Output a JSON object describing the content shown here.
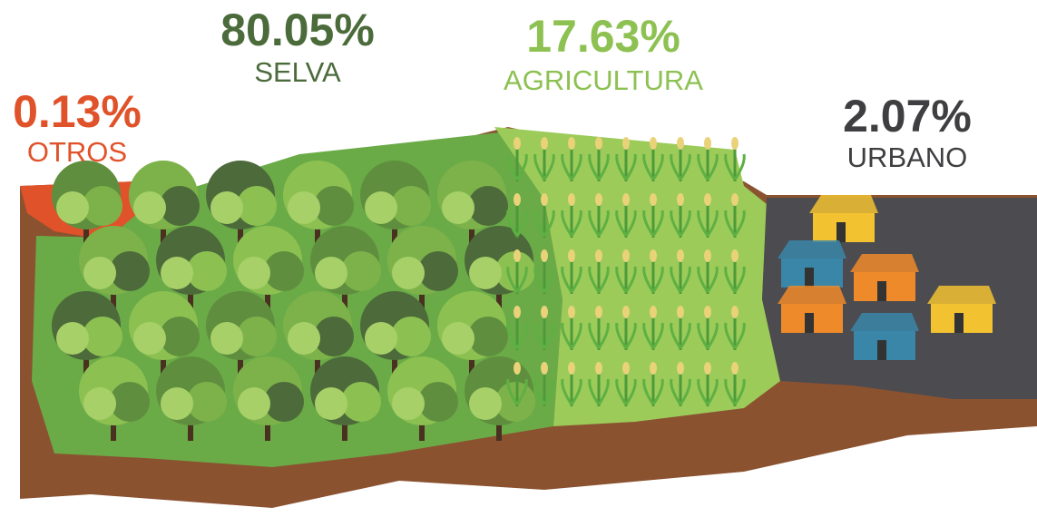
{
  "labels": [
    {
      "percent": "0.13%",
      "name": "OTROS"
    },
    {
      "percent": "80.05%",
      "name": "SELVA"
    },
    {
      "percent": "17.63%",
      "name": "AGRICULTURA"
    },
    {
      "percent": "2.07%",
      "name": "URBANO"
    }
  ]
}
